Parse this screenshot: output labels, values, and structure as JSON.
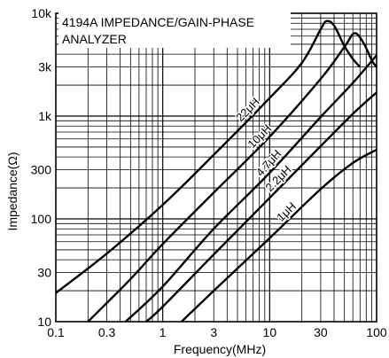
{
  "chart_data": {
    "type": "line",
    "title": "",
    "xlabel": "Frequency(MHz)",
    "ylabel": "Impedance(Ω)",
    "x_scale": "log",
    "y_scale": "log",
    "xlim": [
      0.1,
      100
    ],
    "ylim": [
      10,
      10000
    ],
    "grid": true,
    "x_ticks": [
      0.1,
      0.3,
      1,
      3,
      10,
      30,
      100
    ],
    "x_tick_labels": [
      "0.1",
      "0.3",
      "1",
      "3",
      "10",
      "30",
      "100"
    ],
    "y_ticks": [
      10,
      30,
      100,
      300,
      1000,
      3000,
      10000
    ],
    "y_tick_labels": [
      "10",
      "30",
      "100",
      "300",
      "1k",
      "3k",
      "10k"
    ],
    "annotation": [
      "4194A IMPEDANCE/GAIN-PHASE",
      "ANALYZER"
    ],
    "series": [
      {
        "name": "22μH",
        "x": [
          0.1,
          0.3,
          1,
          3,
          10,
          20,
          30,
          34,
          40,
          50,
          60,
          70
        ],
        "y": [
          19,
          46,
          137,
          420,
          1500,
          3300,
          7000,
          8400,
          7600,
          4800,
          3600,
          3000
        ]
      },
      {
        "name": "10μH",
        "x": [
          0.2,
          0.5,
          1,
          3,
          10,
          30,
          50,
          62,
          75,
          90,
          100
        ],
        "y": [
          10,
          26,
          57,
          180,
          630,
          2300,
          4700,
          6400,
          5200,
          3500,
          3000
        ]
      },
      {
        "name": "4.7μH",
        "x": [
          0.45,
          1,
          3,
          10,
          30,
          60,
          100
        ],
        "y": [
          10,
          22,
          80,
          280,
          980,
          2100,
          3900
        ]
      },
      {
        "name": "2.2μH",
        "x": [
          0.7,
          1,
          3,
          10,
          30,
          60,
          100
        ],
        "y": [
          10,
          14,
          45,
          160,
          510,
          1050,
          1700
        ]
      },
      {
        "name": "1μH",
        "x": [
          1.5,
          3,
          10,
          30,
          60,
          100
        ],
        "y": [
          10,
          20,
          65,
          195,
          350,
          470
        ]
      }
    ]
  }
}
